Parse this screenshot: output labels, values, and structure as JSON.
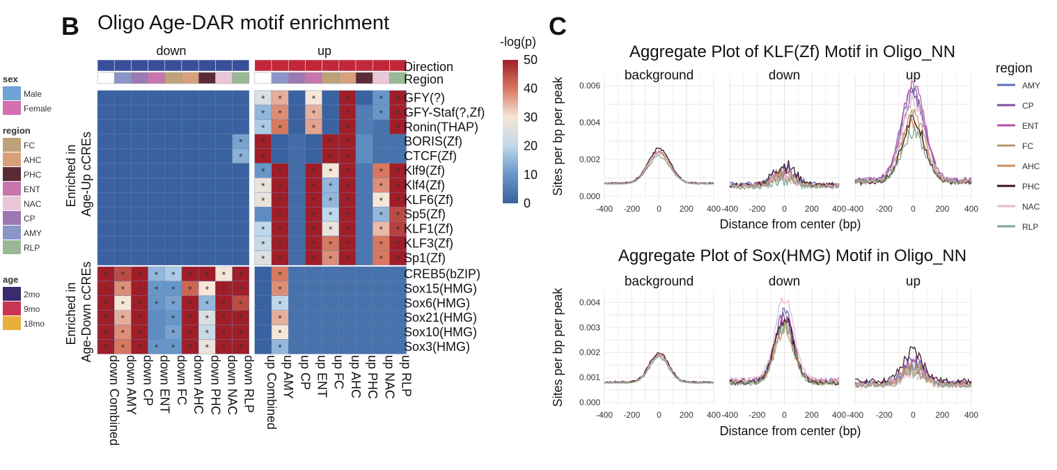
{
  "panelB": {
    "letter": "B",
    "title": "Oligo Age-DAR motif enrichment",
    "direction_groups": [
      "down",
      "up"
    ],
    "annotation_rows": [
      "Direction",
      "Region"
    ],
    "row_groups": [
      "Enriched in Age-Up cCREs",
      "Enriched in Age-Down cCREs"
    ],
    "colorbar_title": "-log(p)",
    "colorbar_ticks": [
      "50",
      "40",
      "30",
      "20",
      "10",
      "0"
    ],
    "legend": {
      "sex_title": "sex",
      "sex": [
        {
          "label": "Male",
          "color": "#6fa2d6"
        },
        {
          "label": "Female",
          "color": "#d46fb0"
        }
      ],
      "region_title": "region",
      "region": [
        {
          "label": "FC",
          "color": "#bca37a"
        },
        {
          "label": "AHC",
          "color": "#d8a07a"
        },
        {
          "label": "PHC",
          "color": "#5a2a35"
        },
        {
          "label": "ENT",
          "color": "#c874ad"
        },
        {
          "label": "NAC",
          "color": "#e9c6d8"
        },
        {
          "label": "CP",
          "color": "#9b79b3"
        },
        {
          "label": "AMY",
          "color": "#8a95c8"
        },
        {
          "label": "RLP",
          "color": "#9ab896"
        }
      ],
      "age_title": "age",
      "age": [
        {
          "label": "2mo",
          "color": "#3b2a6e"
        },
        {
          "label": "9mo",
          "color": "#c93453"
        },
        {
          "label": "18mo",
          "color": "#e8b03a"
        }
      ]
    }
  },
  "panelC": {
    "letter": "C",
    "legend_title": "region",
    "legend": [
      {
        "label": "AMY",
        "color": "#5b6fb5"
      },
      {
        "label": "CP",
        "color": "#7b4d9c"
      },
      {
        "label": "ENT",
        "color": "#b44fa5"
      },
      {
        "label": "FC",
        "color": "#b39a6d"
      },
      {
        "label": "AHC",
        "color": "#d08e5a"
      },
      {
        "label": "PHC",
        "color": "#3b1420"
      },
      {
        "label": "NAC",
        "color": "#e7b6cf"
      },
      {
        "label": "RLP",
        "color": "#7fa58a"
      }
    ]
  },
  "chart_data": [
    {
      "type": "heatmap",
      "title": "Oligo Age-DAR motif enrichment",
      "columns": [
        "down Combined",
        "down AMY",
        "down CP",
        "down ENT",
        "down FC",
        "down AHC",
        "down PHC",
        "down NAC",
        "down RLP",
        "up Combined",
        "up AMY",
        "up CP",
        "up ENT",
        "up FC",
        "up AHC",
        "up PHC",
        "up NAC",
        "up RLP"
      ],
      "column_regions": [
        "Combined",
        "AMY",
        "CP",
        "ENT",
        "FC",
        "AHC",
        "PHC",
        "NAC",
        "RLP",
        "Combined",
        "AMY",
        "CP",
        "ENT",
        "FC",
        "AHC",
        "PHC",
        "NAC",
        "RLP"
      ],
      "rows": [
        "GFY(?)",
        "GFY-Staf(?,Zf)",
        "Ronin(THAP)",
        "BORIS(Zf)",
        "CTCF(Zf)",
        "Klf9(Zf)",
        "Klf4(Zf)",
        "KLF6(Zf)",
        "Sp5(Zf)",
        "KLF1(Zf)",
        "KLF3(Zf)",
        "Sp1(Zf)",
        "CREB5(bZIP)",
        "Sox15(HMG)",
        "Sox6(HMG)",
        "Sox21(HMG)",
        "Sox10(HMG)",
        "Sox3(HMG)"
      ],
      "row_group_sizes": [
        12,
        6
      ],
      "colorbar_range": [
        0,
        50
      ],
      "values": [
        [
          0,
          0,
          0,
          0,
          0,
          0,
          0,
          0,
          0,
          25,
          35,
          0,
          30,
          0,
          50,
          0,
          10,
          50
        ],
        [
          0,
          0,
          0,
          0,
          0,
          0,
          0,
          0,
          0,
          15,
          38,
          0,
          35,
          0,
          50,
          5,
          10,
          50
        ],
        [
          0,
          0,
          0,
          0,
          0,
          0,
          0,
          0,
          0,
          18,
          40,
          0,
          36,
          0,
          50,
          5,
          3,
          50
        ],
        [
          0,
          0,
          0,
          0,
          0,
          0,
          0,
          0,
          12,
          50,
          0,
          2,
          0,
          50,
          50,
          8,
          3,
          3
        ],
        [
          0,
          0,
          0,
          0,
          0,
          0,
          0,
          0,
          14,
          50,
          0,
          2,
          0,
          50,
          50,
          8,
          3,
          3
        ],
        [
          0,
          0,
          0,
          0,
          0,
          0,
          0,
          0,
          0,
          10,
          50,
          2,
          50,
          30,
          50,
          4,
          40,
          50
        ],
        [
          0,
          0,
          0,
          0,
          0,
          0,
          0,
          0,
          0,
          28,
          50,
          2,
          50,
          15,
          50,
          4,
          38,
          50
        ],
        [
          0,
          0,
          0,
          0,
          0,
          0,
          0,
          0,
          0,
          28,
          50,
          2,
          50,
          15,
          50,
          4,
          30,
          50
        ],
        [
          0,
          0,
          0,
          0,
          0,
          0,
          0,
          0,
          0,
          8,
          50,
          2,
          50,
          20,
          50,
          4,
          15,
          45
        ],
        [
          0,
          0,
          0,
          0,
          0,
          0,
          0,
          0,
          0,
          20,
          50,
          2,
          50,
          28,
          50,
          4,
          34,
          46
        ],
        [
          0,
          0,
          0,
          0,
          0,
          0,
          0,
          0,
          0,
          22,
          50,
          2,
          50,
          40,
          50,
          4,
          40,
          50
        ],
        [
          0,
          0,
          0,
          0,
          0,
          0,
          0,
          0,
          0,
          26,
          50,
          2,
          50,
          38,
          50,
          4,
          40,
          50
        ],
        [
          50,
          45,
          50,
          15,
          18,
          50,
          50,
          30,
          50,
          0,
          40,
          3,
          3,
          3,
          3,
          3,
          3,
          3
        ],
        [
          50,
          38,
          50,
          10,
          10,
          42,
          30,
          50,
          50,
          0,
          38,
          3,
          3,
          3,
          3,
          3,
          3,
          3
        ],
        [
          50,
          30,
          50,
          10,
          12,
          50,
          15,
          50,
          45,
          0,
          20,
          3,
          3,
          3,
          3,
          3,
          3,
          3
        ],
        [
          50,
          35,
          50,
          8,
          10,
          50,
          25,
          50,
          50,
          0,
          35,
          3,
          3,
          3,
          3,
          3,
          3,
          3
        ],
        [
          50,
          38,
          50,
          8,
          12,
          50,
          22,
          50,
          50,
          0,
          30,
          3,
          3,
          3,
          3,
          3,
          3,
          3
        ],
        [
          50,
          40,
          50,
          10,
          10,
          50,
          28,
          50,
          50,
          0,
          15,
          3,
          3,
          3,
          3,
          3,
          3,
          3
        ]
      ]
    },
    {
      "type": "line",
      "title": "Aggregate Plot of KLF(Zf) Motif in Oligo_NN",
      "facets": [
        "background",
        "down",
        "up"
      ],
      "xlabel": "Distance from center (bp)",
      "ylabel": "Sites per bp per peak",
      "xlim": [
        -400,
        400
      ],
      "ylim": [
        0,
        0.0065
      ],
      "yticks": [
        0.0,
        0.002,
        0.004,
        0.006
      ],
      "peak_half_width_bp": 80,
      "series": [
        {
          "name": "AMY",
          "baseline": [
            0.0007,
            0.00065,
            0.00085
          ],
          "peak": [
            0.0024,
            0.0014,
            0.0058
          ]
        },
        {
          "name": "CP",
          "baseline": [
            0.0007,
            0.0006,
            0.0009
          ],
          "peak": [
            0.0024,
            0.0012,
            0.0055
          ]
        },
        {
          "name": "ENT",
          "baseline": [
            0.0007,
            0.0006,
            0.0009
          ],
          "peak": [
            0.0024,
            0.0013,
            0.0061
          ]
        },
        {
          "name": "FC",
          "baseline": [
            0.0007,
            0.00055,
            0.0008
          ],
          "peak": [
            0.0024,
            0.0011,
            0.0045
          ]
        },
        {
          "name": "AHC",
          "baseline": [
            0.0007,
            0.0006,
            0.0008
          ],
          "peak": [
            0.0024,
            0.0012,
            0.004
          ]
        },
        {
          "name": "PHC",
          "baseline": [
            0.00072,
            0.0006,
            0.00075
          ],
          "peak": [
            0.0026,
            0.0017,
            0.0041
          ]
        },
        {
          "name": "NAC",
          "baseline": [
            0.0007,
            0.00055,
            0.00085
          ],
          "peak": [
            0.0024,
            0.001,
            0.0052
          ]
        },
        {
          "name": "RLP",
          "baseline": [
            0.00068,
            0.0005,
            0.0008
          ],
          "peak": [
            0.0022,
            0.0009,
            0.0035
          ]
        }
      ]
    },
    {
      "type": "line",
      "title": "Aggregate Plot of Sox(HMG) Motif in Oligo_NN",
      "facets": [
        "background",
        "down",
        "up"
      ],
      "xlabel": "Distance from center (bp)",
      "ylabel": "Sites per bp per peak",
      "xlim": [
        -400,
        400
      ],
      "ylim": [
        0,
        0.0044
      ],
      "yticks": [
        0.0,
        0.001,
        0.002,
        0.003,
        0.004
      ],
      "peak_half_width_bp": 70,
      "series": [
        {
          "name": "AMY",
          "baseline": [
            0.0008,
            0.00085,
            0.00075
          ],
          "peak": [
            0.0019,
            0.0035,
            0.0016
          ]
        },
        {
          "name": "CP",
          "baseline": [
            0.0008,
            0.00085,
            0.00075
          ],
          "peak": [
            0.0019,
            0.0033,
            0.0015
          ]
        },
        {
          "name": "ENT",
          "baseline": [
            0.0008,
            0.00085,
            0.00075
          ],
          "peak": [
            0.0019,
            0.0034,
            0.0016
          ]
        },
        {
          "name": "FC",
          "baseline": [
            0.0008,
            0.0008,
            0.0007
          ],
          "peak": [
            0.0019,
            0.0031,
            0.0013
          ]
        },
        {
          "name": "AHC",
          "baseline": [
            0.0008,
            0.0008,
            0.00072
          ],
          "peak": [
            0.0019,
            0.003,
            0.0014
          ]
        },
        {
          "name": "PHC",
          "baseline": [
            0.00082,
            0.0008,
            0.00085
          ],
          "peak": [
            0.002,
            0.0033,
            0.002
          ]
        },
        {
          "name": "NAC",
          "baseline": [
            0.0008,
            0.0009,
            0.0007
          ],
          "peak": [
            0.0019,
            0.0042,
            0.0012
          ]
        },
        {
          "name": "RLP",
          "baseline": [
            0.00078,
            0.0008,
            0.0007
          ],
          "peak": [
            0.0018,
            0.0029,
            0.0012
          ]
        }
      ]
    }
  ]
}
